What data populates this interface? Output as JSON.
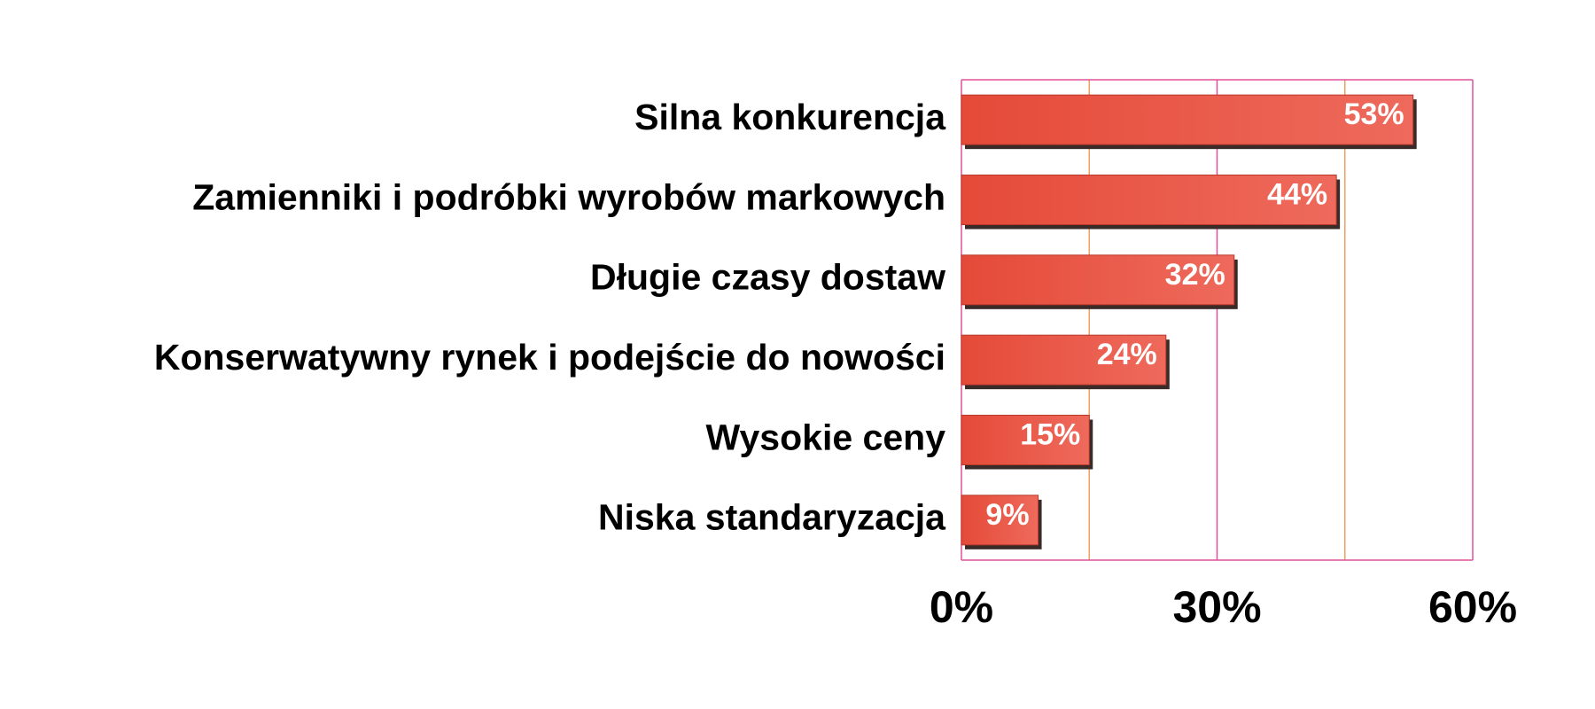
{
  "chart_data": {
    "type": "bar",
    "orientation": "horizontal",
    "categories": [
      "Silna konkurencja",
      "Zamienniki i podróbki wyrobów markowych",
      "Długie czasy dostaw",
      "Konserwatywny rynek i podejście do nowości",
      "Wysokie ceny",
      "Niska standaryzacja"
    ],
    "values": [
      53,
      44,
      32,
      24,
      15,
      9
    ],
    "value_labels": [
      "53%",
      "44%",
      "32%",
      "24%",
      "15%",
      "9%"
    ],
    "color": "#e8503f",
    "xlim": [
      0,
      60
    ],
    "xticks": [
      {
        "value": 0,
        "label": "0%"
      },
      {
        "value": 30,
        "label": "30%"
      },
      {
        "value": 60,
        "label": "60%"
      }
    ],
    "minor_xticks": [
      15,
      45
    ],
    "grid": true
  }
}
